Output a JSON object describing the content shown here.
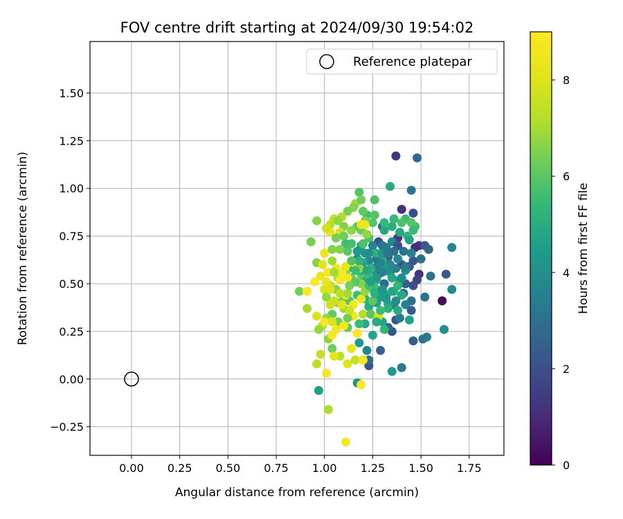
{
  "chart_data": {
    "type": "scatter",
    "title": "FOV centre drift starting at 2024/09/30 19:54:02",
    "xlabel": "Angular distance from reference (arcmin)",
    "ylabel": "Rotation from reference (arcmin)",
    "xlim": [
      -0.215,
      1.93
    ],
    "ylim": [
      -0.4,
      1.77
    ],
    "xticks": [
      0.0,
      0.25,
      0.5,
      0.75,
      1.0,
      1.25,
      1.5,
      1.75
    ],
    "xtick_labels": [
      "0.00",
      "0.25",
      "0.50",
      "0.75",
      "1.00",
      "1.25",
      "1.50",
      "1.75"
    ],
    "yticks": [
      -0.25,
      0.0,
      0.25,
      0.5,
      0.75,
      1.0,
      1.25,
      1.5
    ],
    "ytick_labels": [
      "−0.25",
      "0.00",
      "0.25",
      "0.50",
      "0.75",
      "1.00",
      "1.25",
      "1.50"
    ],
    "grid": true,
    "legend": {
      "position": "top-right",
      "entries": [
        "Reference platepar"
      ]
    },
    "reference_point": {
      "x": 0.0,
      "y": 0.0,
      "marker": "open-circle"
    },
    "colorbar": {
      "label": "Hours from first FF file",
      "min": 0,
      "max": 9,
      "ticks": [
        0,
        2,
        4,
        6,
        8
      ],
      "colormap": "viridis"
    },
    "point_value_semantics": "each point: [x arcmin, y arcmin, hours from first FF file]",
    "points": [
      [
        1.61,
        0.41,
        0.2
      ],
      [
        1.37,
        1.17,
        1.3
      ],
      [
        1.48,
        1.16,
        2.7
      ],
      [
        1.4,
        0.89,
        1.1
      ],
      [
        1.45,
        0.99,
        3.1
      ],
      [
        1.46,
        0.87,
        2.0
      ],
      [
        1.38,
        0.74,
        1.4
      ],
      [
        1.49,
        0.7,
        1.3
      ],
      [
        1.47,
        0.69,
        1.0
      ],
      [
        1.52,
        0.7,
        2.2
      ],
      [
        1.54,
        0.68,
        2.5
      ],
      [
        1.5,
        0.63,
        2.9
      ],
      [
        1.46,
        0.62,
        2.2
      ],
      [
        1.4,
        0.6,
        1.8
      ],
      [
        1.44,
        0.59,
        2.4
      ],
      [
        1.49,
        0.55,
        1.2
      ],
      [
        1.48,
        0.52,
        1.6
      ],
      [
        1.46,
        0.49,
        2.0
      ],
      [
        1.42,
        0.5,
        2.4
      ],
      [
        1.55,
        0.54,
        3.0
      ],
      [
        1.63,
        0.55,
        2.3
      ],
      [
        1.66,
        0.69,
        3.6
      ],
      [
        1.66,
        0.47,
        3.8
      ],
      [
        1.62,
        0.26,
        4.0
      ],
      [
        1.53,
        0.22,
        3.4
      ],
      [
        1.51,
        0.21,
        3.2
      ],
      [
        1.46,
        0.2,
        2.4
      ],
      [
        1.4,
        0.06,
        3.4
      ],
      [
        1.35,
        0.04,
        4.4
      ],
      [
        1.37,
        0.31,
        2.1
      ],
      [
        1.35,
        0.25,
        2.1
      ],
      [
        1.33,
        0.27,
        2.6
      ],
      [
        1.29,
        0.15,
        2.5
      ],
      [
        1.23,
        0.07,
        2.2
      ],
      [
        1.23,
        0.1,
        2.8
      ],
      [
        1.22,
        0.15,
        3.7
      ],
      [
        1.18,
        0.19,
        4.3
      ],
      [
        1.17,
        -0.02,
        4.1
      ],
      [
        0.97,
        -0.06,
        4.5
      ],
      [
        1.39,
        0.32,
        3.3
      ],
      [
        1.45,
        0.41,
        2.9
      ],
      [
        1.41,
        0.45,
        3.2
      ],
      [
        1.36,
        0.39,
        3.5
      ],
      [
        1.31,
        0.5,
        2.7
      ],
      [
        1.28,
        0.55,
        2.3
      ],
      [
        1.27,
        0.63,
        3.1
      ],
      [
        1.32,
        0.69,
        3.4
      ],
      [
        1.35,
        0.72,
        3.8
      ],
      [
        1.3,
        0.8,
        3.0
      ],
      [
        1.28,
        0.72,
        2.0
      ],
      [
        1.33,
        0.64,
        2.6
      ],
      [
        1.27,
        0.59,
        3.5
      ],
      [
        1.25,
        0.56,
        4.1
      ],
      [
        1.23,
        0.62,
        3.9
      ],
      [
        1.21,
        0.66,
        4.2
      ],
      [
        1.19,
        0.7,
        4.5
      ],
      [
        1.17,
        0.63,
        3.3
      ],
      [
        1.15,
        0.58,
        5.0
      ],
      [
        1.21,
        0.52,
        4.6
      ],
      [
        1.26,
        0.47,
        4.9
      ],
      [
        1.29,
        0.43,
        4.4
      ],
      [
        1.33,
        0.39,
        4.7
      ],
      [
        1.36,
        0.46,
        5.2
      ],
      [
        1.39,
        0.52,
        4.3
      ],
      [
        1.42,
        0.57,
        4.0
      ],
      [
        1.45,
        0.66,
        3.6
      ],
      [
        1.43,
        0.75,
        5.3
      ],
      [
        1.47,
        0.8,
        5.6
      ],
      [
        1.42,
        0.84,
        5.5
      ],
      [
        1.35,
        0.8,
        5.0
      ],
      [
        1.31,
        0.78,
        4.8
      ],
      [
        1.34,
        1.01,
        5.0
      ],
      [
        1.26,
        0.94,
        5.8
      ],
      [
        1.18,
        0.98,
        5.9
      ],
      [
        1.22,
        0.86,
        5.6
      ],
      [
        1.26,
        0.86,
        5.9
      ],
      [
        1.2,
        0.88,
        6.1
      ],
      [
        1.16,
        0.92,
        6.9
      ],
      [
        1.15,
        0.9,
        6.6
      ],
      [
        1.12,
        0.88,
        6.4
      ],
      [
        1.17,
        0.8,
        6.0
      ],
      [
        1.14,
        0.78,
        6.7
      ],
      [
        1.1,
        0.8,
        6.5
      ],
      [
        1.09,
        0.85,
        7.2
      ],
      [
        1.05,
        0.84,
        7.4
      ],
      [
        1.08,
        0.77,
        7.8
      ],
      [
        1.03,
        0.81,
        7.3
      ],
      [
        1.03,
        0.77,
        8.3
      ],
      [
        0.96,
        0.83,
        6.6
      ],
      [
        0.93,
        0.72,
        6.4
      ],
      [
        1.1,
        0.75,
        6.3
      ],
      [
        1.19,
        0.78,
        6.2
      ],
      [
        1.23,
        0.74,
        5.7
      ],
      [
        1.27,
        0.66,
        5.1
      ],
      [
        1.3,
        0.62,
        5.0
      ],
      [
        1.27,
        0.52,
        5.4
      ],
      [
        1.23,
        0.54,
        5.5
      ],
      [
        1.19,
        0.55,
        5.9
      ],
      [
        1.14,
        0.53,
        6.2
      ],
      [
        1.11,
        0.56,
        6.5
      ],
      [
        1.07,
        0.53,
        7.1
      ],
      [
        1.06,
        0.47,
        6.6
      ],
      [
        1.1,
        0.43,
        6.2
      ],
      [
        1.13,
        0.41,
        6.0
      ],
      [
        1.17,
        0.44,
        5.6
      ],
      [
        1.21,
        0.42,
        5.2
      ],
      [
        1.23,
        0.38,
        5.0
      ],
      [
        1.27,
        0.4,
        4.6
      ],
      [
        1.32,
        0.44,
        4.4
      ],
      [
        1.35,
        0.46,
        4.8
      ],
      [
        1.38,
        0.49,
        5.3
      ],
      [
        1.4,
        0.44,
        4.9
      ],
      [
        1.3,
        0.3,
        4.7
      ],
      [
        1.25,
        0.23,
        4.8
      ],
      [
        1.21,
        0.29,
        4.9
      ],
      [
        1.18,
        0.29,
        5.5
      ],
      [
        1.12,
        0.27,
        6.1
      ],
      [
        1.07,
        0.3,
        6.3
      ],
      [
        1.04,
        0.34,
        6.1
      ],
      [
        1.01,
        0.32,
        6.8
      ],
      [
        0.99,
        0.28,
        7.2
      ],
      [
        0.97,
        0.26,
        6.8
      ],
      [
        1.02,
        0.21,
        6.7
      ],
      [
        1.04,
        0.16,
        6.3
      ],
      [
        1.08,
        0.12,
        7.3
      ],
      [
        1.12,
        0.08,
        8.1
      ],
      [
        1.16,
        0.1,
        7.5
      ],
      [
        1.2,
        0.1,
        8.6
      ],
      [
        1.19,
        -0.03,
        8.9
      ],
      [
        1.11,
        -0.33,
        8.8
      ],
      [
        1.02,
        -0.16,
        7.1
      ],
      [
        1.01,
        0.03,
        8.8
      ],
      [
        0.96,
        0.08,
        7.3
      ],
      [
        0.98,
        0.13,
        7.5
      ],
      [
        1.05,
        0.12,
        8.2
      ],
      [
        1.14,
        0.16,
        8.4
      ],
      [
        1.17,
        0.24,
        8.9
      ],
      [
        1.1,
        0.28,
        8.6
      ],
      [
        1.04,
        0.23,
        8.9
      ],
      [
        1.0,
        0.3,
        8.7
      ],
      [
        0.96,
        0.33,
        7.9
      ],
      [
        0.91,
        0.37,
        7.0
      ],
      [
        0.87,
        0.46,
        6.4
      ],
      [
        0.91,
        0.46,
        8.9
      ],
      [
        0.95,
        0.51,
        8.9
      ],
      [
        0.98,
        0.54,
        8.4
      ],
      [
        0.96,
        0.61,
        6.6
      ],
      [
        0.99,
        0.6,
        8.1
      ],
      [
        1.0,
        0.66,
        8.4
      ],
      [
        1.02,
        0.56,
        8.7
      ],
      [
        1.06,
        0.58,
        8.6
      ],
      [
        1.09,
        0.56,
        8.9
      ],
      [
        1.11,
        0.59,
        8.3
      ],
      [
        1.15,
        0.61,
        8.2
      ],
      [
        1.12,
        0.53,
        8.6
      ],
      [
        1.08,
        0.52,
        8.8
      ],
      [
        1.03,
        0.49,
        7.4
      ],
      [
        1.0,
        0.47,
        7.9
      ],
      [
        1.01,
        0.43,
        6.8
      ],
      [
        1.03,
        0.39,
        7.8
      ],
      [
        1.07,
        0.4,
        6.4
      ],
      [
        1.1,
        0.37,
        6.9
      ],
      [
        1.11,
        0.44,
        8.4
      ],
      [
        1.15,
        0.39,
        8.7
      ],
      [
        1.15,
        0.33,
        8.8
      ],
      [
        1.19,
        0.42,
        8.5
      ],
      [
        1.2,
        0.34,
        7.2
      ],
      [
        1.24,
        0.34,
        6.0
      ],
      [
        1.28,
        0.33,
        8.0
      ],
      [
        1.31,
        0.26,
        5.4
      ],
      [
        1.26,
        0.48,
        5.6
      ],
      [
        1.34,
        0.56,
        4.0
      ],
      [
        1.37,
        0.58,
        3.5
      ],
      [
        1.34,
        0.6,
        3.9
      ],
      [
        1.3,
        0.66,
        4.1
      ],
      [
        1.3,
        0.7,
        3.2
      ],
      [
        1.25,
        0.7,
        3.6
      ],
      [
        1.23,
        0.66,
        4.0
      ],
      [
        1.2,
        0.61,
        4.7
      ],
      [
        1.17,
        0.67,
        4.4
      ],
      [
        1.19,
        0.57,
        5.1
      ],
      [
        1.24,
        0.58,
        5.2
      ],
      [
        1.31,
        0.58,
        4.3
      ],
      [
        1.38,
        0.63,
        3.8
      ],
      [
        1.41,
        0.67,
        3.1
      ],
      [
        1.44,
        0.73,
        4.7
      ],
      [
        1.39,
        0.77,
        4.9
      ],
      [
        1.36,
        0.84,
        5.4
      ],
      [
        1.4,
        0.82,
        5.8
      ],
      [
        1.45,
        0.82,
        5.9
      ],
      [
        1.46,
        0.78,
        5.5
      ],
      [
        1.31,
        0.82,
        5.4
      ],
      [
        1.25,
        0.82,
        5.9
      ],
      [
        1.21,
        0.83,
        6.4
      ],
      [
        1.19,
        0.94,
        6.3
      ],
      [
        1.22,
        0.76,
        6.8
      ],
      [
        1.2,
        0.71,
        5.8
      ],
      [
        1.14,
        0.71,
        5.7
      ],
      [
        1.12,
        0.67,
        6.0
      ],
      [
        1.11,
        0.71,
        5.6
      ],
      [
        1.08,
        0.68,
        6.5
      ],
      [
        1.06,
        0.74,
        6.4
      ],
      [
        1.04,
        0.68,
        6.6
      ],
      [
        1.04,
        0.62,
        6.9
      ],
      [
        1.19,
        0.5,
        6.6
      ],
      [
        1.24,
        0.48,
        5.4
      ],
      [
        1.28,
        0.45,
        4.5
      ],
      [
        1.37,
        0.41,
        4.0
      ],
      [
        1.42,
        0.39,
        3.6
      ],
      [
        1.45,
        0.36,
        2.4
      ],
      [
        1.52,
        0.43,
        3.0
      ],
      [
        1.44,
        0.31,
        4.6
      ],
      [
        1.38,
        0.36,
        5.0
      ],
      [
        1.33,
        0.37,
        5.1
      ],
      [
        1.29,
        0.36,
        5.5
      ],
      [
        1.25,
        0.41,
        6.0
      ],
      [
        1.21,
        0.46,
        6.8
      ],
      [
        1.17,
        0.51,
        6.5
      ],
      [
        1.12,
        0.45,
        7.0
      ],
      [
        1.08,
        0.45,
        7.3
      ],
      [
        1.05,
        0.41,
        7.6
      ],
      [
        1.09,
        0.39,
        8.2
      ],
      [
        1.12,
        0.32,
        6.3
      ],
      [
        1.13,
        0.36,
        7.6
      ],
      [
        1.06,
        0.26,
        8.6
      ],
      [
        1.04,
        0.3,
        8.0
      ],
      [
        1.01,
        0.51,
        8.4
      ],
      [
        1.03,
        0.47,
        8.0
      ],
      [
        1.05,
        0.56,
        7.0
      ],
      [
        1.01,
        0.79,
        7.7
      ],
      [
        1.07,
        0.83,
        6.8
      ],
      [
        1.19,
        0.81,
        8.5
      ],
      [
        1.21,
        0.81,
        8.4
      ],
      [
        1.18,
        0.58,
        6.8
      ],
      [
        1.23,
        0.49,
        5.7
      ],
      [
        1.26,
        0.45,
        5.1
      ],
      [
        1.3,
        0.47,
        4.2
      ],
      [
        1.35,
        0.53,
        4.8
      ],
      [
        1.32,
        0.42,
        4.3
      ],
      [
        1.27,
        0.3,
        4.9
      ],
      [
        1.42,
        0.59,
        3.4
      ],
      [
        1.4,
        0.53,
        3.9
      ],
      [
        1.38,
        0.7,
        2.1
      ],
      [
        1.36,
        0.67,
        2.9
      ],
      [
        1.33,
        0.66,
        3.2
      ],
      [
        1.29,
        0.61,
        3.7
      ],
      [
        1.3,
        0.56,
        3.6
      ],
      [
        1.27,
        0.53,
        4.3
      ],
      [
        1.24,
        0.51,
        4.5
      ],
      [
        1.22,
        0.57,
        4.8
      ],
      [
        1.18,
        0.62,
        5.2
      ],
      [
        1.16,
        0.57,
        5.5
      ],
      [
        1.14,
        0.62,
        5.8
      ],
      [
        1.16,
        0.51,
        6.0
      ],
      [
        1.13,
        0.49,
        6.4
      ]
    ]
  }
}
